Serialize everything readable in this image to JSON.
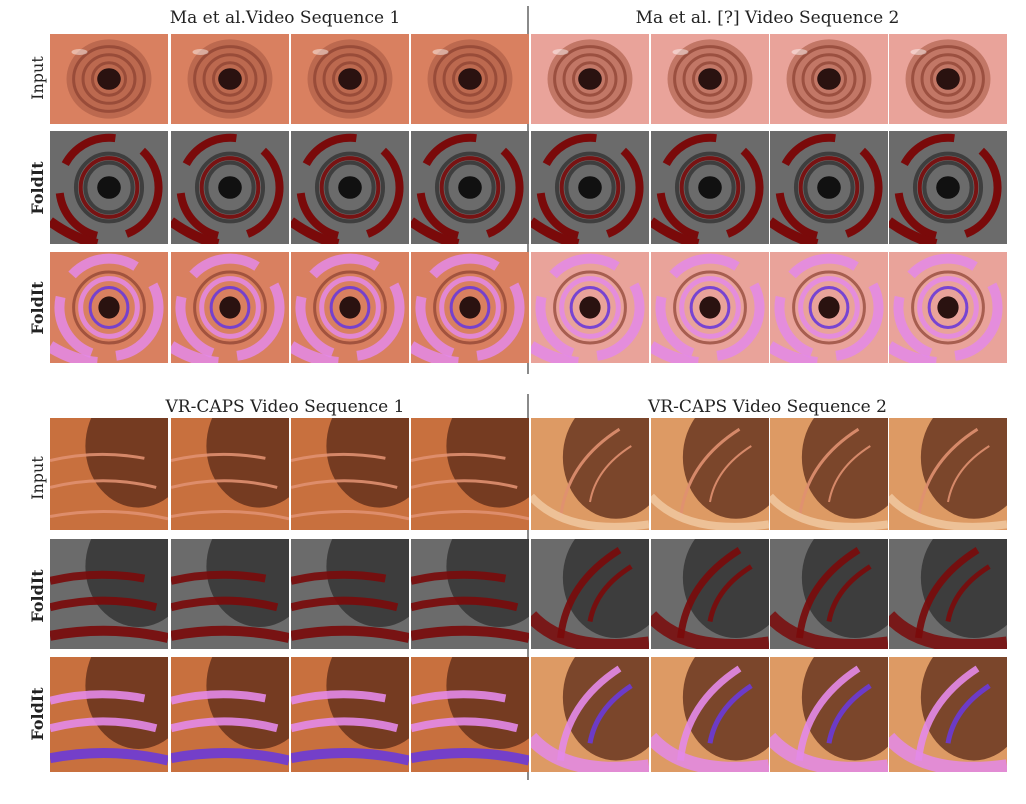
{
  "figure": {
    "groups": [
      {
        "titles": [
          "Ma et al.Video Sequence 1",
          "Ma et al. [?] Video Sequence 2"
        ],
        "row_labels": [
          "Input",
          "FoldIt",
          "FoldIt"
        ]
      },
      {
        "titles": [
          "VR-CAPS Video Sequence 1",
          "VR-CAPS Video Sequence 2"
        ],
        "row_labels": [
          "Input",
          "FoldIt",
          "FoldIt"
        ]
      }
    ],
    "frames_per_sequence": 4,
    "colors": {
      "tissue_ma1": "#d98060",
      "tissue_ma2": "#e9a39a",
      "tissue_vr1": "#c8703e",
      "tissue_vr2": "#dd9a64",
      "lumen": "#2a1210",
      "fold_gray": "#6b6b6b",
      "fold_red": "#7a0a0a",
      "overlay_pink": "#e38ae8",
      "overlay_purple": "#6a3ad8",
      "divider": "#8a8a8a"
    }
  }
}
